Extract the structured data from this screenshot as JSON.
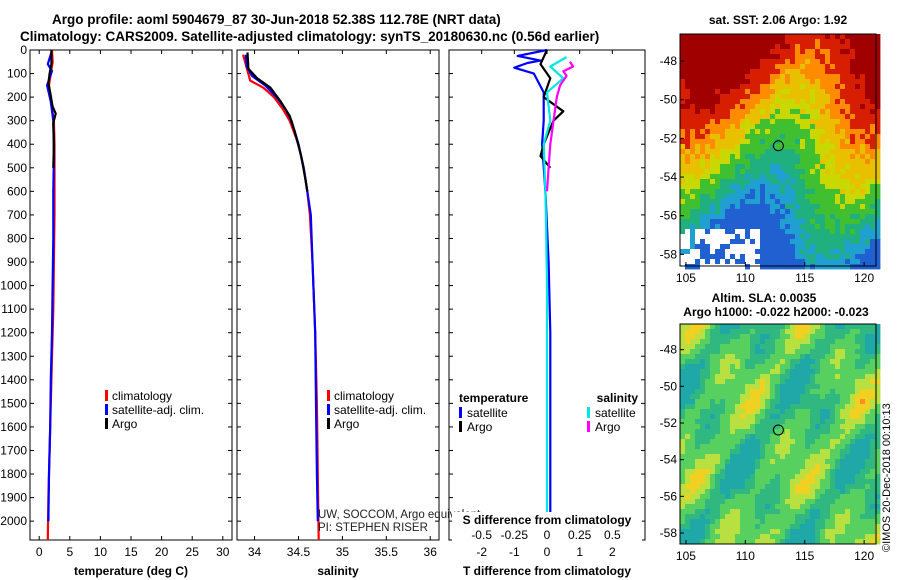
{
  "header": {
    "title_line1": "Argo profile: aoml 5904679_87 30-Jun-2018 52.38S 112.78E (NRT data)",
    "title_line2": "Climatology: CARS2009. Satellite-adjusted climatology: synTS_20180630.nc (0.56d earlier)"
  },
  "colors": {
    "climatology": "#ff0000",
    "satellite": "#0000ff",
    "argo": "#000000",
    "satellite_salinity": "#00e5e5",
    "argo_salinity": "#ff00ff"
  },
  "chart_data": [
    {
      "type": "line",
      "panel": "temperature",
      "xlabel": "temperature (deg C)",
      "xlim": [
        -1.5,
        31.5
      ],
      "xticks": [
        0,
        5,
        10,
        15,
        20,
        25,
        30
      ],
      "ylim": [
        2080,
        0
      ],
      "yticks": [
        0,
        100,
        200,
        300,
        400,
        500,
        600,
        700,
        800,
        900,
        1000,
        1100,
        1200,
        1300,
        1400,
        1500,
        1600,
        1700,
        1800,
        1900,
        2000
      ],
      "series": [
        {
          "name": "climatology",
          "color": "#ff0000",
          "points": [
            [
              2.1,
              0
            ],
            [
              2.2,
              50
            ],
            [
              1.9,
              100
            ],
            [
              1.6,
              150
            ],
            [
              1.8,
              200
            ],
            [
              2.4,
              300
            ],
            [
              2.5,
              400
            ],
            [
              2.5,
              500
            ],
            [
              2.5,
              700
            ],
            [
              2.4,
              900
            ],
            [
              2.3,
              1100
            ],
            [
              2.1,
              1300
            ],
            [
              1.9,
              1500
            ],
            [
              1.7,
              1700
            ],
            [
              1.5,
              1900
            ],
            [
              1.4,
              2080
            ]
          ]
        },
        {
          "name": "satellite-adj. clim.",
          "color": "#0000ff",
          "points": [
            [
              2.0,
              10
            ],
            [
              1.4,
              60
            ],
            [
              2.1,
              90
            ],
            [
              1.3,
              150
            ],
            [
              1.9,
              220
            ],
            [
              2.3,
              300
            ],
            [
              2.4,
              450
            ],
            [
              2.3,
              600
            ],
            [
              2.3,
              800
            ],
            [
              2.2,
              1000
            ],
            [
              2.1,
              1200
            ],
            [
              1.9,
              1400
            ],
            [
              1.8,
              1600
            ],
            [
              1.6,
              1800
            ],
            [
              1.5,
              2000
            ]
          ]
        },
        {
          "name": "Argo",
          "color": "#000000",
          "points": [
            [
              2.0,
              0
            ],
            [
              2.0,
              60
            ],
            [
              1.7,
              100
            ],
            [
              1.5,
              140
            ],
            [
              1.8,
              180
            ],
            [
              2.2,
              240
            ],
            [
              2.7,
              270
            ],
            [
              2.3,
              310
            ],
            [
              2.4,
              400
            ],
            [
              2.3,
              500
            ]
          ]
        }
      ],
      "legend": [
        "climatology",
        "satellite-adj. clim.",
        "Argo"
      ]
    },
    {
      "type": "line",
      "panel": "salinity",
      "xlabel": "salinity",
      "xlim": [
        33.8,
        36.1
      ],
      "xticks": [
        34,
        34.5,
        35,
        35.5,
        36
      ],
      "series": [
        {
          "name": "climatology",
          "color": "#ff0000",
          "points": [
            [
              33.87,
              20
            ],
            [
              33.95,
              130
            ],
            [
              34.1,
              160
            ],
            [
              34.22,
              200
            ],
            [
              34.32,
              250
            ],
            [
              34.4,
              300
            ],
            [
              34.5,
              400
            ],
            [
              34.56,
              500
            ],
            [
              34.6,
              600
            ],
            [
              34.63,
              700
            ],
            [
              34.66,
              900
            ],
            [
              34.69,
              1200
            ],
            [
              34.71,
              1500
            ],
            [
              34.72,
              1800
            ],
            [
              34.73,
              2080
            ]
          ]
        },
        {
          "name": "satellite-adj. clim.",
          "color": "#0000ff",
          "points": [
            [
              33.9,
              20
            ],
            [
              33.91,
              70
            ],
            [
              33.97,
              110
            ],
            [
              34.12,
              150
            ],
            [
              34.25,
              200
            ],
            [
              34.35,
              250
            ],
            [
              34.42,
              300
            ],
            [
              34.5,
              400
            ],
            [
              34.56,
              500
            ],
            [
              34.6,
              600
            ],
            [
              34.64,
              700
            ],
            [
              34.66,
              900
            ],
            [
              34.69,
              1200
            ],
            [
              34.7,
              1500
            ],
            [
              34.71,
              1800
            ],
            [
              34.72,
              2000
            ]
          ]
        },
        {
          "name": "Argo",
          "color": "#000000",
          "points": [
            [
              33.92,
              10
            ],
            [
              33.93,
              80
            ],
            [
              34.03,
              120
            ],
            [
              34.18,
              160
            ],
            [
              34.3,
              220
            ],
            [
              34.4,
              280
            ],
            [
              34.46,
              350
            ],
            [
              34.53,
              450
            ],
            [
              34.58,
              550
            ],
            [
              34.6,
              600
            ]
          ]
        }
      ],
      "legend": [
        "climatology",
        "satellite-adj. clim.",
        "Argo"
      ],
      "annotations": [
        "UW, SOCCOM, Argo equivalent",
        "PI: STEPHEN RISER"
      ]
    },
    {
      "type": "line",
      "panel": "difference",
      "xlabel": "T difference from climatology",
      "xlabel_top": "S difference from climatology",
      "xlim": [
        -3,
        3
      ],
      "xticks": [
        -2,
        -1,
        0,
        1,
        2
      ],
      "xticks_top": [
        "-0.5",
        "-0.25",
        "0",
        "0.25",
        "0.5"
      ],
      "series": [
        {
          "name": "temperature satellite",
          "color": "#0000ff",
          "points": [
            [
              0,
              0
            ],
            [
              -0.9,
              25
            ],
            [
              -0.2,
              45
            ],
            [
              -0.6,
              55
            ],
            [
              -1.0,
              75
            ],
            [
              -0.4,
              100
            ],
            [
              -0.1,
              180
            ],
            [
              -0.1,
              300
            ],
            [
              -0.15,
              400
            ],
            [
              -0.05,
              600
            ],
            [
              0.05,
              900
            ],
            [
              0.1,
              1200
            ],
            [
              0.1,
              1500
            ],
            [
              0.1,
              2000
            ]
          ]
        },
        {
          "name": "temperature Argo",
          "color": "#000000",
          "points": [
            [
              0,
              0
            ],
            [
              -0.2,
              60
            ],
            [
              0.1,
              120
            ],
            [
              -0.1,
              200
            ],
            [
              0.5,
              260
            ],
            [
              0.2,
              300
            ],
            [
              -0.1,
              400
            ],
            [
              -0.2,
              450
            ],
            [
              0.1,
              500
            ]
          ]
        },
        {
          "name": "salinity satellite",
          "color": "#00e5e5",
          "points": [
            [
              0.6,
              30
            ],
            [
              0.1,
              70
            ],
            [
              0.5,
              120
            ],
            [
              0,
              180
            ],
            [
              0.1,
              300
            ],
            [
              -0.1,
              400
            ],
            [
              -0.05,
              600
            ],
            [
              -0.02,
              800
            ],
            [
              0,
              1000
            ],
            [
              0,
              1500
            ],
            [
              0,
              2000
            ]
          ]
        },
        {
          "name": "salinity Argo",
          "color": "#ff00ff",
          "points": [
            [
              0.7,
              50
            ],
            [
              0.8,
              70
            ],
            [
              0.5,
              90
            ],
            [
              0.6,
              110
            ],
            [
              0.4,
              150
            ],
            [
              0.3,
              200
            ],
            [
              0.2,
              300
            ],
            [
              0.1,
              400
            ],
            [
              0.05,
              500
            ],
            [
              0,
              600
            ]
          ]
        }
      ],
      "legend_groups": {
        "left_title": "temperature",
        "right_title": "salinity",
        "left": [
          "satellite",
          "Argo"
        ],
        "right": [
          "satellite",
          "Argo"
        ]
      }
    },
    {
      "type": "heatmap",
      "panel": "sst_map",
      "title": "sat. SST: 2.06 Argo: 1.92",
      "xlim": [
        104.5,
        121
      ],
      "ylim": [
        -58.6,
        -46.6
      ],
      "xticks": [
        105,
        110,
        115,
        120
      ],
      "yticks": [
        -48,
        -50,
        -52,
        -54,
        -56,
        -58
      ],
      "marker": [
        112.78,
        -52.38
      ]
    },
    {
      "type": "heatmap",
      "panel": "sla_map",
      "title_line1": "Altim. SLA: 0.0035",
      "title_line2": "Argo h1000: -0.022 h2000: -0.023",
      "xlim": [
        104.5,
        121
      ],
      "ylim": [
        -58.6,
        -46.6
      ],
      "xticks": [
        105,
        110,
        115,
        120
      ],
      "yticks": [
        -48,
        -50,
        -52,
        -54,
        -56,
        -58
      ],
      "marker": [
        112.78,
        -52.38
      ],
      "side_label": "©IMOS 20-Dec-2018 00:10:13"
    }
  ]
}
